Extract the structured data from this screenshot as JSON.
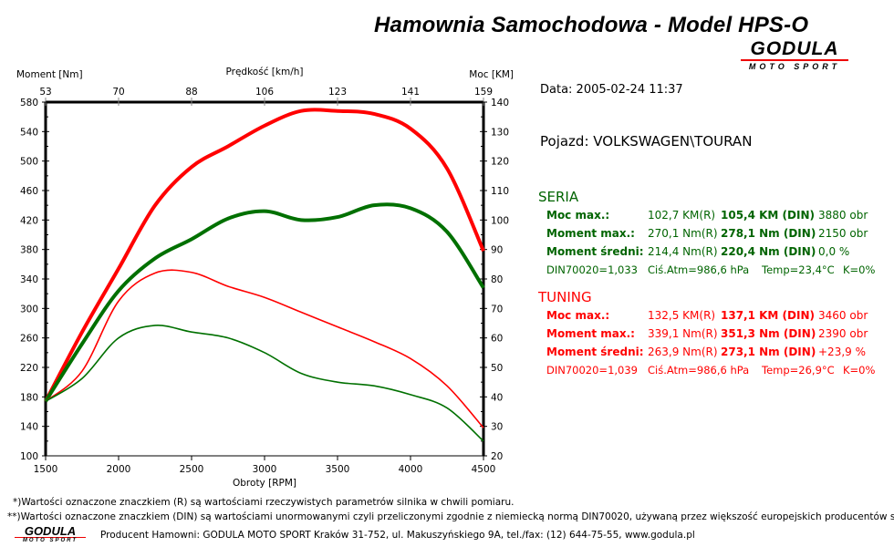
{
  "header": {
    "title": "Hamownia Samochodowa   -   Model HPS-O",
    "logo_main": "GODULA",
    "logo_sub": "MOTO SPORT"
  },
  "info": {
    "date": "Data: 2005-02-24  11:37",
    "vehicle": "Pojazd: VOLKSWAGEN\\TOURAN",
    "seria": {
      "title": "SERIA",
      "rows": [
        {
          "label": "Moc max.:",
          "r": "102,7 KM(R)",
          "din": "105,4 KM (DIN)",
          "extra": "3880 obr"
        },
        {
          "label": "Moment max.:",
          "r": "270,1 Nm(R)",
          "din": "278,1 Nm (DIN)",
          "extra": "2150 obr"
        },
        {
          "label": "Moment średni:",
          "r": "214,4 Nm(R)",
          "din": "220,4 Nm (DIN)",
          "extra": "0,0 %"
        }
      ],
      "din": "DIN70020=1,033",
      "atm": "Ciś.Atm=986,6 hPa",
      "temp": "Temp=23,4°C",
      "k": "K=0%"
    },
    "tuning": {
      "title": "TUNING",
      "rows": [
        {
          "label": "Moc max.:",
          "r": "132,5 KM(R)",
          "din": "137,1 KM (DIN)",
          "extra": "3460 obr"
        },
        {
          "label": "Moment max.:",
          "r": "339,1 Nm(R)",
          "din": "351,3 Nm (DIN)",
          "extra": "2390 obr"
        },
        {
          "label": "Moment średni:",
          "r": "263,9 Nm(R)",
          "din": "273,1 Nm (DIN)",
          "extra": "+23,9 %"
        }
      ],
      "din": "DIN70020=1,039",
      "atm": "Ciś.Atm=986,6 hPa",
      "temp": "Temp=26,9°C",
      "k": "K=0%"
    }
  },
  "footer": {
    "note1": "*)Wartości oznaczone znaczkiem (R) są wartościami rzeczywistych parametrów silnika w chwili pomiaru.",
    "note2": "**)Wartości oznaczone znaczkiem (DIN) są wartościami unormowanymi czyli przeliczonymi zgodnie z niemiecką normą DIN70020, używaną przez większość europejskich producentów samochodów.",
    "producer": "Producent Hamowni: GODULA MOTO SPORT Kraków 31-752, ul. Makuszyńskiego 9A, tel./fax: (12) 644-75-55, www.godula.pl",
    "logo_main": "GODULA",
    "logo_sub": "MOTO SPORT"
  },
  "chart_data": {
    "type": "line",
    "xlabel": "Obroty [RPM]",
    "ylabel": "Moment [Nm]",
    "y2label": "Moc [KM]",
    "x2label": "Prędkość [km/h]",
    "xlim": [
      1500,
      4500
    ],
    "ylim": [
      100,
      580
    ],
    "y2lim": [
      20,
      140
    ],
    "xticks": [
      1500,
      2000,
      2500,
      3000,
      3500,
      4000,
      4500
    ],
    "x2ticks": [
      "53",
      "70",
      "88",
      "106",
      "123",
      "141",
      "159"
    ],
    "yticks": [
      580,
      540,
      500,
      460,
      420,
      380,
      340,
      300,
      260,
      220,
      180,
      140,
      100
    ],
    "y2ticks": [
      140,
      130,
      120,
      110,
      100,
      90,
      80,
      70,
      60,
      50,
      40,
      30,
      20
    ],
    "grid": false,
    "rpm": [
      1500,
      1750,
      2000,
      2250,
      2500,
      2750,
      3000,
      3250,
      3500,
      3750,
      4000,
      4250,
      4500
    ],
    "series": [
      {
        "name": "Tuning moc",
        "axis": "right",
        "color": "#ff0000",
        "width": 4,
        "values": [
          38.5,
          62,
          83.5,
          105,
          118,
          125,
          132,
          137,
          137,
          136,
          131,
          117.5,
          89.5
        ]
      },
      {
        "name": "Seria moc",
        "axis": "right",
        "color": "#007000",
        "width": 4,
        "values": [
          38.5,
          58,
          76,
          87,
          93.5,
          100.5,
          103,
          100,
          101,
          105,
          104,
          96,
          77
        ]
      },
      {
        "name": "Tuning moment",
        "axis": "left",
        "color": "#ff0000",
        "width": 1.6,
        "values": [
          174,
          215,
          310,
          348,
          349,
          330,
          315,
          295,
          275,
          255,
          232,
          195,
          138
        ]
      },
      {
        "name": "Seria moment",
        "axis": "left",
        "color": "#007000",
        "width": 1.6,
        "values": [
          174,
          205,
          260,
          277,
          268,
          260,
          240,
          212,
          200,
          195,
          183,
          165,
          120
        ]
      }
    ]
  }
}
